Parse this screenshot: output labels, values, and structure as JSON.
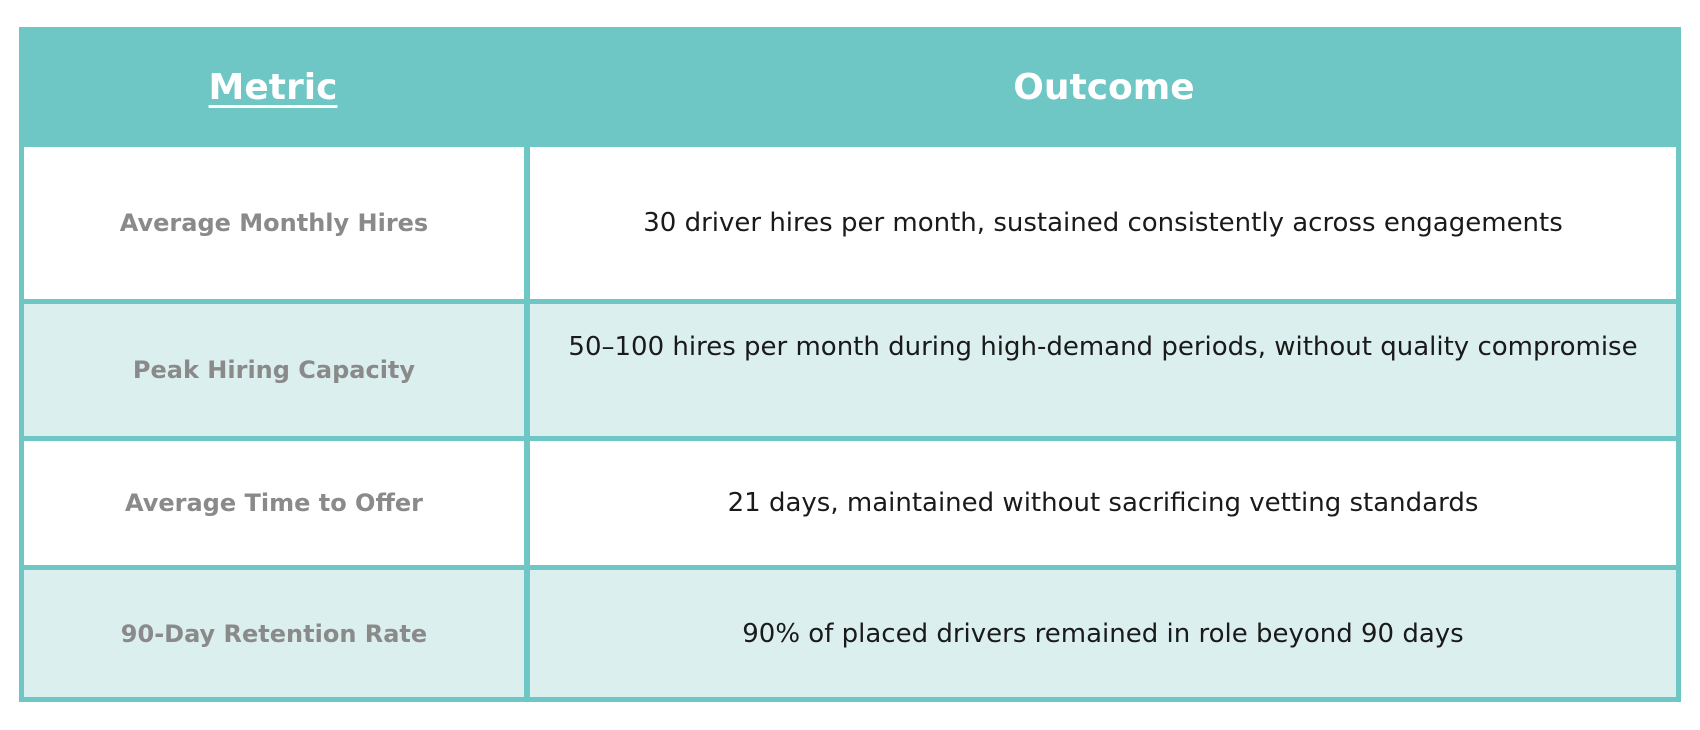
{
  "table": {
    "headers": {
      "metric": "Metric",
      "outcome": "Outcome"
    },
    "rows": [
      {
        "metric": "Average Monthly Hires",
        "outcome": "30 driver hires per month, sustained consistently across engagements"
      },
      {
        "metric": "Peak Hiring Capacity",
        "outcome": "50–100 hires per month during high-demand periods, without quality compromise"
      },
      {
        "metric": "Average Time to Offer",
        "outcome": "21 days, maintained without sacrificing vetting standards"
      },
      {
        "metric": "90-Day Retention Rate",
        "outcome": "90% of placed drivers remained in role beyond 90 days"
      }
    ]
  },
  "colors": {
    "header_bg": "#6ec6c5",
    "border": "#6ec6c5",
    "tint_row_bg": "#daefee",
    "metric_text": "#8a8a8a",
    "outcome_text": "#1a1a1a"
  }
}
